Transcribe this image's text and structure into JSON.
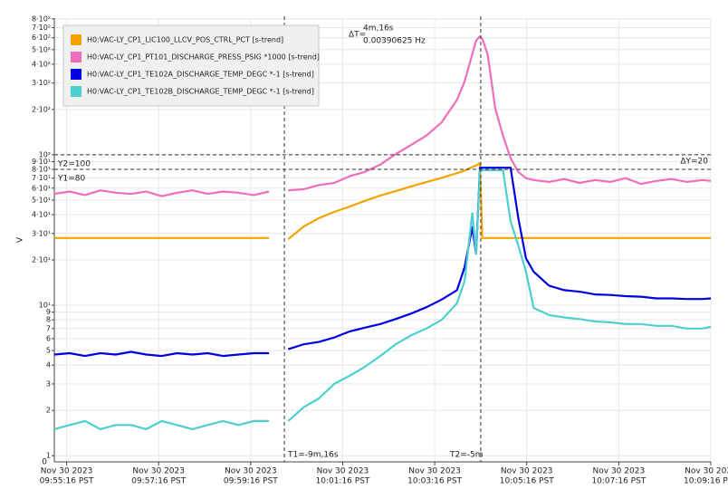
{
  "chart_data": {
    "type": "line",
    "y_label": "V",
    "log_y": true,
    "grid": true,
    "legend_position": "upper-left",
    "ylim": [
      0.91,
      810
    ],
    "ybottom_label": "0",
    "yticks": [
      {
        "value": 800,
        "label": "8·10²"
      },
      {
        "value": 700,
        "label": "7·10²"
      },
      {
        "value": 600,
        "label": "6·10²"
      },
      {
        "value": 500,
        "label": "5·10²"
      },
      {
        "value": 400,
        "label": "4·10²"
      },
      {
        "value": 300,
        "label": "3·10²"
      },
      {
        "value": 200,
        "label": "2·10²"
      },
      {
        "value": 100,
        "label": "10²"
      },
      {
        "value": 90,
        "label": "9·10¹"
      },
      {
        "value": 80,
        "label": "8·10¹"
      },
      {
        "value": 70,
        "label": "7·10¹"
      },
      {
        "value": 60,
        "label": "6·10¹"
      },
      {
        "value": 50,
        "label": "5·10¹"
      },
      {
        "value": 40,
        "label": "4·10¹"
      },
      {
        "value": 30,
        "label": "3·10¹"
      },
      {
        "value": 20,
        "label": "2·10¹"
      },
      {
        "value": 10,
        "label": "10¹"
      },
      9,
      8,
      7,
      6,
      5,
      4,
      3,
      2,
      1
    ],
    "xlim": [
      "09:55:00",
      "10:09:16"
    ],
    "xticks": [
      {
        "value": "09:55:16",
        "label": [
          "Nov 30 2023",
          "09:55:16 PST"
        ]
      },
      {
        "value": "09:57:16",
        "label": [
          "Nov 30 2023",
          "09:57:16 PST"
        ]
      },
      {
        "value": "09:59:16",
        "label": [
          "Nov 30 2023",
          "09:59:16 PST"
        ]
      },
      {
        "value": "10:01:16",
        "label": [
          "Nov 30 2023",
          "10:01:16 PST"
        ]
      },
      {
        "value": "10:03:16",
        "label": [
          "Nov 30 2023",
          "10:03:16 PST"
        ]
      },
      {
        "value": "10:05:16",
        "label": [
          "Nov 30 2023",
          "10:05:16 PST"
        ]
      },
      {
        "value": "10:07:16",
        "label": [
          "Nov 30 2023",
          "10:07:16 PST"
        ]
      },
      {
        "value": "10:09:16",
        "label": [
          "Nov 30 2023",
          "10:09:16 PST"
        ]
      }
    ],
    "x": [
      "09:55:00",
      "09:55:20",
      "09:55:40",
      "09:56:00",
      "09:56:20",
      "09:56:40",
      "09:57:00",
      "09:57:20",
      "09:57:40",
      "09:58:00",
      "09:58:20",
      "09:58:40",
      "09:59:00",
      "09:59:20",
      "09:59:40",
      "09:59:52",
      "10:00:05",
      "10:00:25",
      "10:00:45",
      "10:01:05",
      "10:01:25",
      "10:01:45",
      "10:02:05",
      "10:02:25",
      "10:02:45",
      "10:03:05",
      "10:03:25",
      "10:03:45",
      "10:03:55",
      "10:04:05",
      "10:04:10",
      "10:04:15",
      "10:04:18",
      "10:04:25",
      "10:04:35",
      "10:04:45",
      "10:04:55",
      "10:05:05",
      "10:05:15",
      "10:05:25",
      "10:05:45",
      "10:06:05",
      "10:06:25",
      "10:06:45",
      "10:07:05",
      "10:07:25",
      "10:07:45",
      "10:08:05",
      "10:08:25",
      "10:08:45",
      "10:09:05",
      "10:09:16"
    ],
    "series": [
      {
        "name": "H0:VAC-LY_CP1_LIC100_LLCV_POS_CTRL_PCT [s-trend]",
        "color": "#f5a300",
        "values": [
          28,
          28,
          28,
          28,
          28,
          28,
          28,
          28,
          28,
          28,
          28,
          28,
          28,
          28,
          28,
          null,
          27.5,
          33.4,
          37.9,
          41.7,
          45.3,
          49.4,
          53.6,
          57.3,
          61.6,
          65.8,
          70.3,
          75.5,
          78.5,
          83,
          85,
          88,
          28,
          28,
          28,
          28,
          28,
          28,
          28,
          28,
          28,
          28,
          28,
          28,
          28,
          28,
          28,
          28,
          28,
          28,
          28,
          28
        ]
      },
      {
        "name": "H0:VAC-LY_CP1_PT101_DISCHARGE_PRESS_PSIG *1000 [s-trend]",
        "color": "#f06eb9",
        "values": [
          55,
          57,
          54,
          58,
          56,
          55,
          57,
          53,
          56,
          58,
          55,
          57,
          56,
          54,
          57,
          null,
          58,
          59,
          63,
          65,
          72,
          77,
          86,
          101,
          116,
          134,
          164,
          232,
          307,
          467,
          575,
          611,
          590,
          467,
          203,
          134,
          95,
          77,
          70,
          68,
          66,
          69,
          65,
          68,
          66,
          70,
          64,
          67,
          69,
          66,
          68,
          67
        ]
      },
      {
        "name": "H0:VAC-LY_CP1_TE102A_DISCHARGE_TEMP_DEGC *-1 [s-trend]",
        "color": "#0000e0",
        "values": [
          4.7,
          4.8,
          4.6,
          4.8,
          4.7,
          4.9,
          4.7,
          4.6,
          4.8,
          4.7,
          4.8,
          4.6,
          4.7,
          4.8,
          4.8,
          null,
          5.1,
          5.5,
          5.7,
          6.1,
          6.7,
          7.1,
          7.5,
          8.1,
          8.8,
          9.7,
          10.9,
          12.6,
          17.9,
          33,
          22,
          82,
          82,
          82,
          82,
          82,
          82,
          38,
          20.5,
          16.7,
          13.5,
          12.6,
          12.3,
          11.8,
          11.7,
          11.5,
          11.4,
          11.1,
          11.1,
          11,
          11,
          11.1
        ]
      },
      {
        "name": "H0:VAC-LY_CP1_TE102B_DISCHARGE_TEMP_DEGC *-1 [s-trend]",
        "color": "#4ecfcf",
        "values": [
          1.5,
          1.6,
          1.7,
          1.5,
          1.6,
          1.6,
          1.5,
          1.7,
          1.6,
          1.5,
          1.6,
          1.7,
          1.6,
          1.7,
          1.7,
          null,
          1.7,
          2.1,
          2.4,
          3,
          3.4,
          3.9,
          4.6,
          5.5,
          6.3,
          7,
          8,
          10.3,
          14.5,
          41,
          22,
          79,
          79,
          79,
          79,
          79,
          36,
          25,
          16.7,
          9.6,
          8.6,
          8.3,
          8.1,
          7.8,
          7.7,
          7.5,
          7.5,
          7.3,
          7.3,
          7,
          7,
          7.2
        ]
      }
    ],
    "cursors": {
      "x1": "10:00:00",
      "x2": "10:04:16",
      "y1": 80,
      "y2": 100
    },
    "annotations": {
      "t1": "T1=-9m,16s",
      "t2": "T2=-5m",
      "delta_t_label": "ΔT=",
      "delta_t": "4m,16s",
      "frequency": "0.00390625 Hz",
      "y1": "Y1=80",
      "y2": "Y2=100",
      "delta_y": "ΔY=20"
    }
  }
}
